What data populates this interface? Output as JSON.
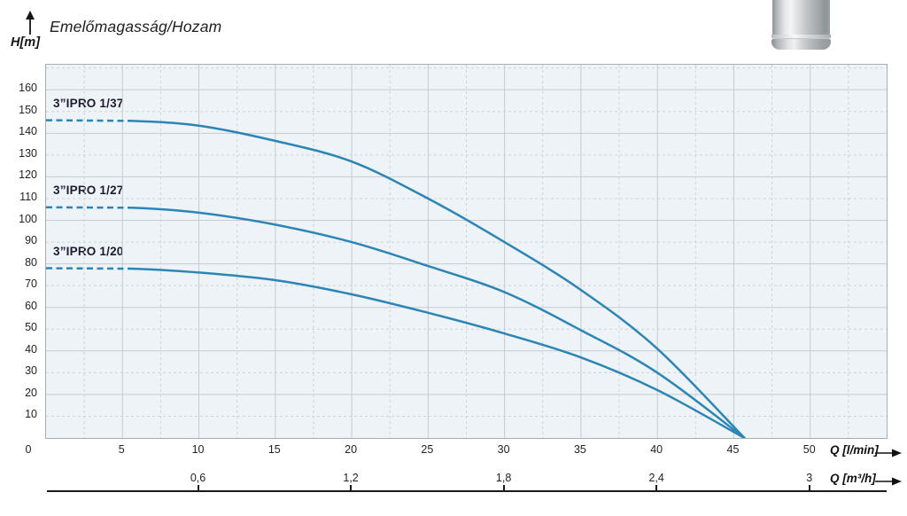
{
  "header": {
    "title": "Emelőmagasság/Hozam",
    "y_axis_unit": "H[m]"
  },
  "colors": {
    "curve": "#2d85b6",
    "plot_bg": "#edf3f7",
    "grid_solid": "#c5cbd0",
    "grid_dashed": "#ced3d6",
    "frame": "#a7aeb3",
    "axis_text": "#222222",
    "axis_line": "#1a1a1a"
  },
  "chart_data": {
    "type": "line",
    "title": "Emelőmagasság/Hozam",
    "ylabel": "H[m]",
    "xlabel_primary": "Q [l/min]",
    "xlabel_secondary": "Q [m³/h]",
    "xlim": [
      0,
      55
    ],
    "ylim": [
      0,
      171.5
    ],
    "grid": {
      "x_solid_step": 5,
      "x_dashed_start": 2.5,
      "x_dashed_step": 5,
      "y_solid_step": 20,
      "y_dashed_start": 10,
      "y_dashed_step": 20
    },
    "y_ticks": [
      10,
      20,
      30,
      40,
      50,
      60,
      70,
      80,
      90,
      100,
      110,
      120,
      130,
      140,
      150,
      160
    ],
    "origin_label": "0",
    "x_ticks_lmin": [
      5,
      10,
      15,
      20,
      25,
      30,
      35,
      40,
      45,
      50
    ],
    "x_ticks_m3h": [
      {
        "label": "0,6",
        "q": 10
      },
      {
        "label": "1,2",
        "q": 20
      },
      {
        "label": "1,8",
        "q": 30
      },
      {
        "label": "2,4",
        "q": 40
      },
      {
        "label": "3",
        "q": 50
      }
    ],
    "series": [
      {
        "name": "3”IPRO 1/37",
        "dashed_until_q": 5.5,
        "points": [
          [
            0,
            146
          ],
          [
            5.5,
            145.7
          ],
          [
            10,
            143.5
          ],
          [
            15,
            136.5
          ],
          [
            20,
            127
          ],
          [
            25,
            110
          ],
          [
            30,
            90
          ],
          [
            35,
            68
          ],
          [
            40,
            41
          ],
          [
            45.7,
            0
          ]
        ]
      },
      {
        "name": "3”IPRO 1/27",
        "dashed_until_q": 5.5,
        "points": [
          [
            0,
            106
          ],
          [
            5.5,
            105.8
          ],
          [
            10,
            103.5
          ],
          [
            15,
            98
          ],
          [
            20,
            90
          ],
          [
            25,
            79
          ],
          [
            30,
            67
          ],
          [
            35,
            49.5
          ],
          [
            40,
            30
          ],
          [
            45.7,
            0
          ]
        ]
      },
      {
        "name": "3”IPRO 1/20",
        "dashed_until_q": 5.5,
        "points": [
          [
            0,
            78
          ],
          [
            5.5,
            77.8
          ],
          [
            10,
            76
          ],
          [
            15,
            72.5
          ],
          [
            20,
            66
          ],
          [
            25,
            57.5
          ],
          [
            30,
            48
          ],
          [
            35,
            37
          ],
          [
            40,
            22
          ],
          [
            45.7,
            0
          ]
        ]
      }
    ]
  }
}
